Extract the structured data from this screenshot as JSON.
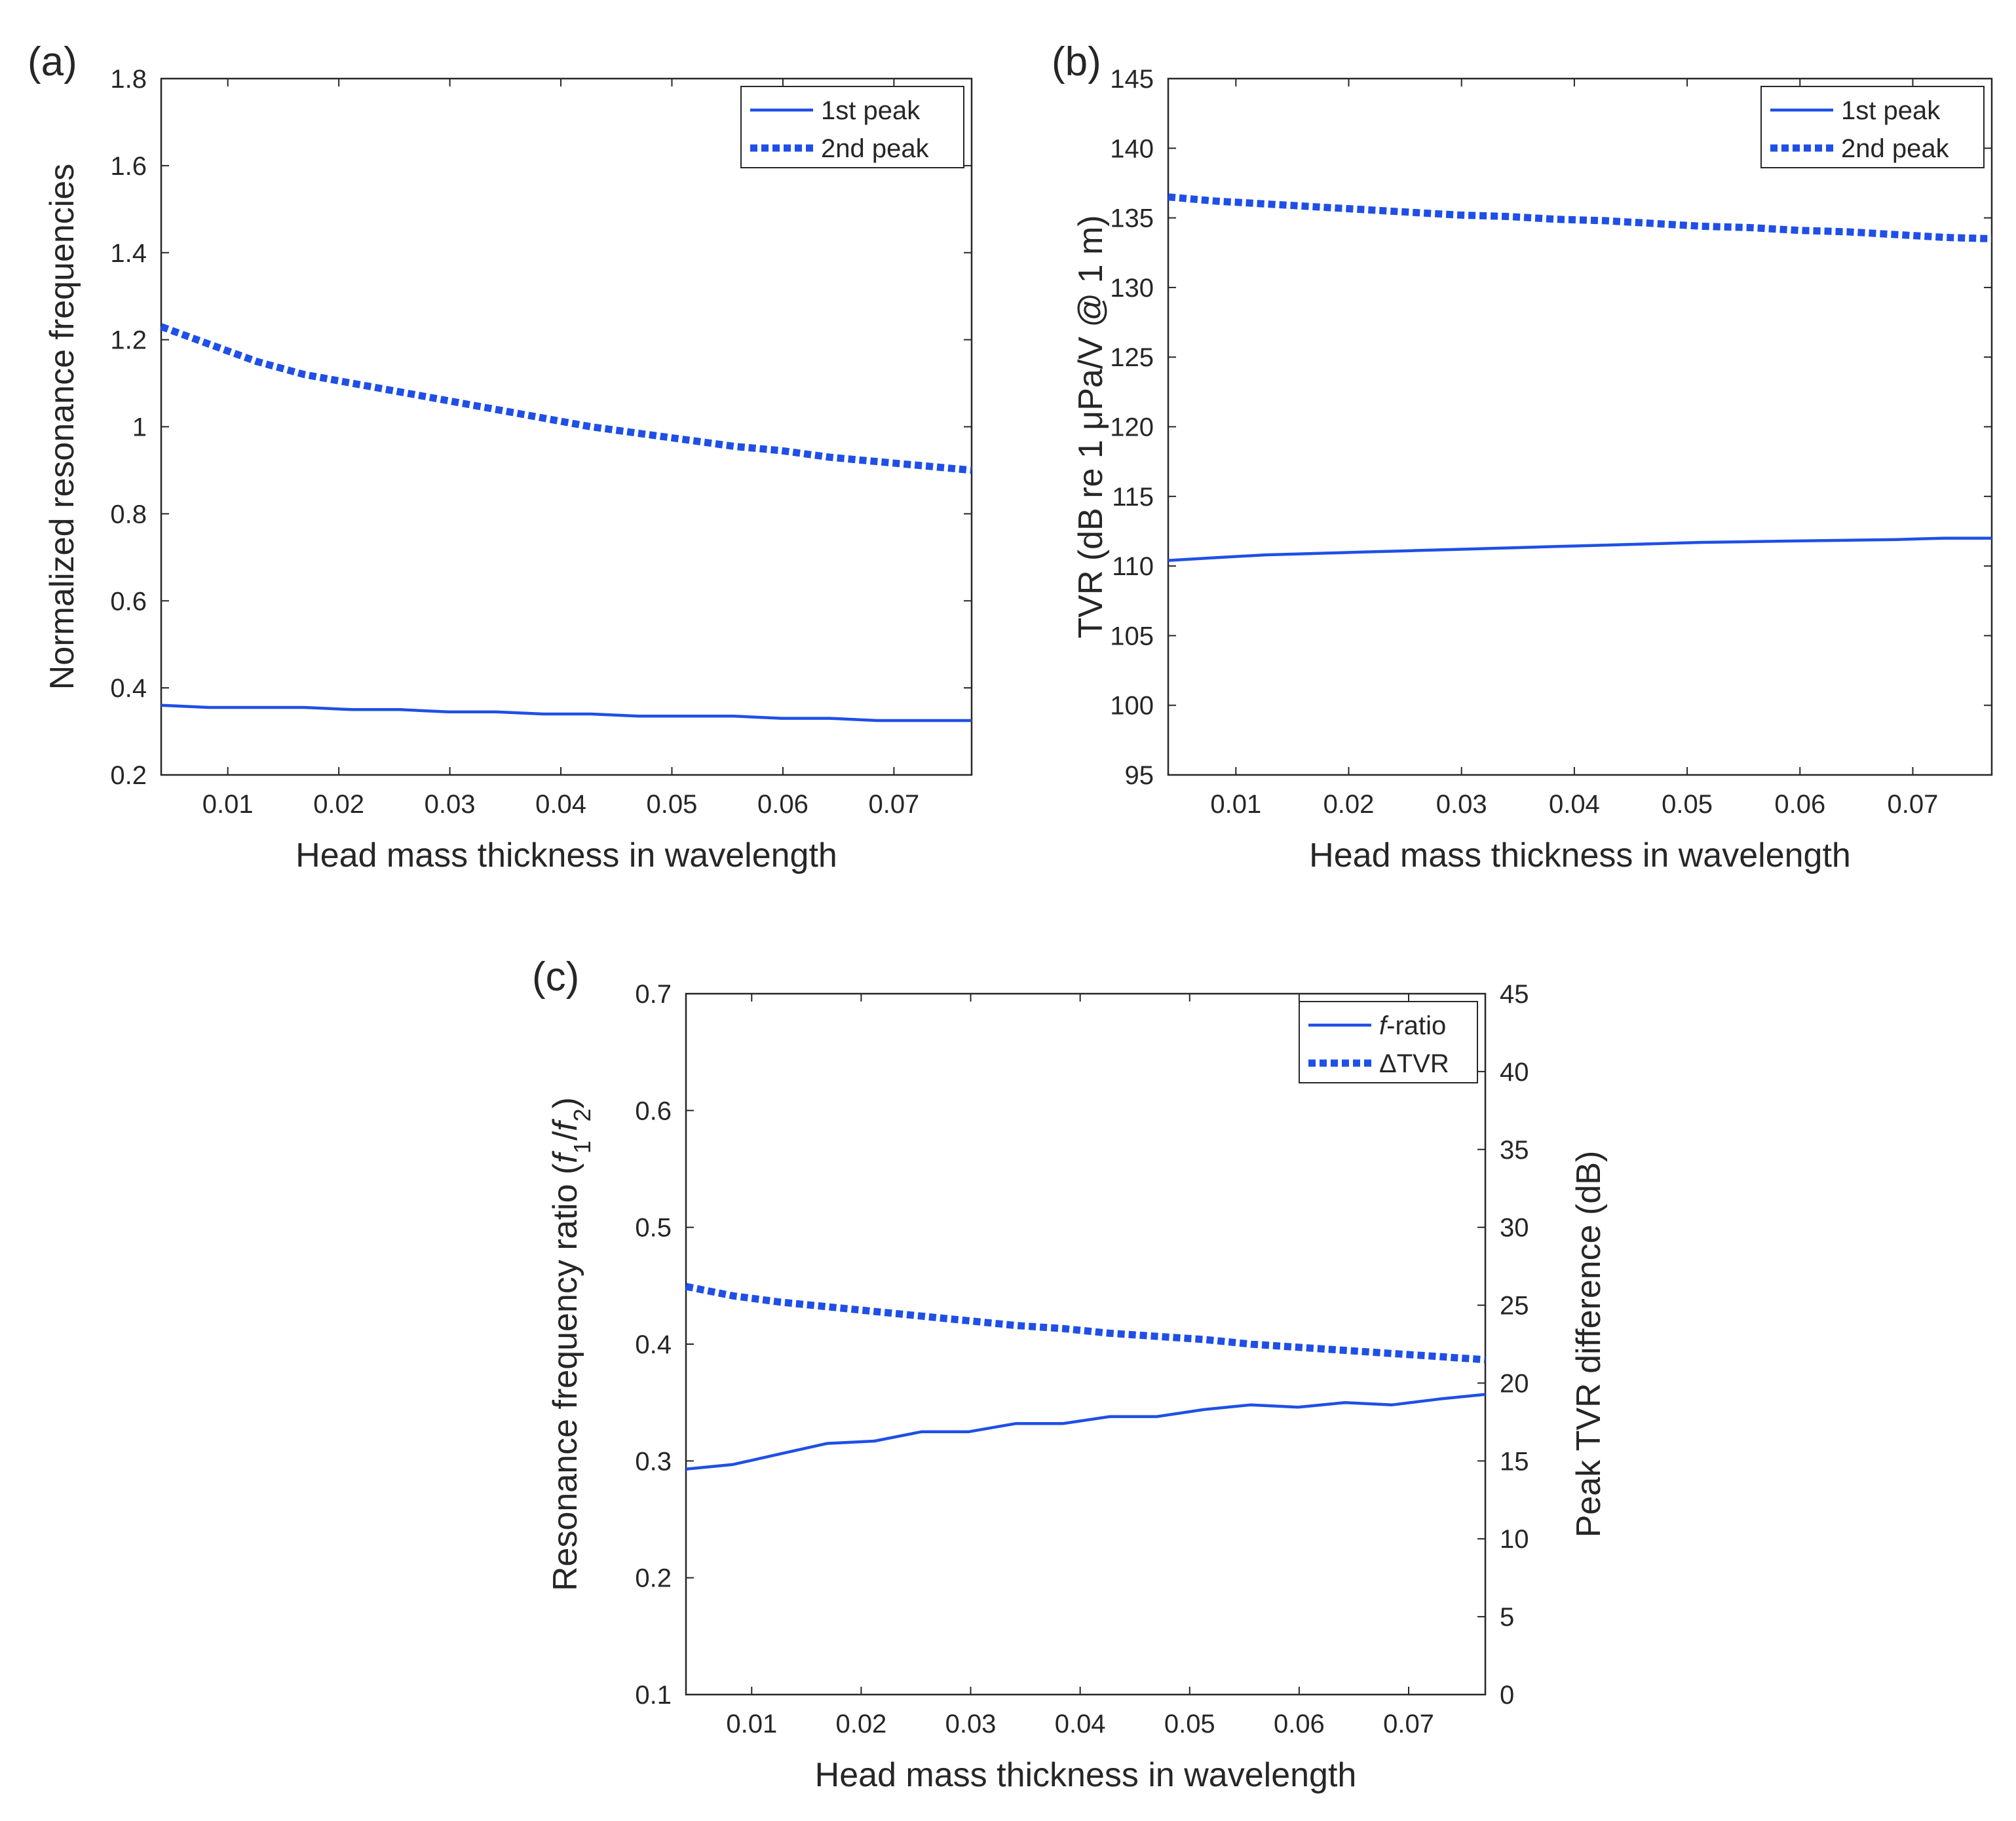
{
  "figure": {
    "panel_labels": [
      "(a)",
      "(b)",
      "(c)"
    ]
  },
  "colors": {
    "series": "#1f4fe6",
    "axis": "#262626",
    "background": "#ffffff"
  },
  "chart_data": [
    {
      "panel": "(a)",
      "type": "line",
      "title": "",
      "xlabel": "Head mass thickness in wavelength",
      "ylabel": "Normalized resonance frequencies",
      "xlim": [
        0.004,
        0.077
      ],
      "ylim": [
        0.2,
        1.8
      ],
      "xticks": [
        0.01,
        0.02,
        0.03,
        0.04,
        0.05,
        0.06,
        0.07
      ],
      "xtick_labels": [
        "0.01",
        "0.02",
        "0.03",
        "0.04",
        "0.05",
        "0.06",
        "0.07"
      ],
      "yticks": [
        0.2,
        0.4,
        0.6,
        0.8,
        1.0,
        1.2,
        1.4,
        1.6,
        1.8
      ],
      "ytick_labels": [
        "0.2",
        "0.4",
        "0.6",
        "0.8",
        "1",
        "1.2",
        "1.4",
        "1.6",
        "1.8"
      ],
      "legend_position": "top-right",
      "x": [
        0.004,
        0.0083,
        0.0126,
        0.0169,
        0.0212,
        0.0255,
        0.0298,
        0.0341,
        0.0384,
        0.0427,
        0.047,
        0.0513,
        0.0556,
        0.0599,
        0.0642,
        0.0685,
        0.0728,
        0.077
      ],
      "series": [
        {
          "name": "1st peak",
          "style": "solid",
          "values": [
            0.36,
            0.355,
            0.355,
            0.355,
            0.35,
            0.35,
            0.345,
            0.345,
            0.34,
            0.34,
            0.335,
            0.335,
            0.335,
            0.33,
            0.33,
            0.325,
            0.325,
            0.325
          ]
        },
        {
          "name": "2nd peak",
          "style": "dotted",
          "values": [
            1.23,
            1.19,
            1.15,
            1.12,
            1.1,
            1.08,
            1.06,
            1.04,
            1.02,
            1.0,
            0.985,
            0.97,
            0.955,
            0.945,
            0.93,
            0.92,
            0.91,
            0.9
          ]
        }
      ]
    },
    {
      "panel": "(b)",
      "type": "line",
      "title": "",
      "xlabel": "Head mass thickness in wavelength",
      "ylabel": "TVR (dB re 1 μPa/V @ 1 m)",
      "xlim": [
        0.004,
        0.077
      ],
      "ylim": [
        95,
        145
      ],
      "xticks": [
        0.01,
        0.02,
        0.03,
        0.04,
        0.05,
        0.06,
        0.07
      ],
      "xtick_labels": [
        "0.01",
        "0.02",
        "0.03",
        "0.04",
        "0.05",
        "0.06",
        "0.07"
      ],
      "yticks": [
        95,
        100,
        105,
        110,
        115,
        120,
        125,
        130,
        135,
        140,
        145
      ],
      "ytick_labels": [
        "95",
        "100",
        "105",
        "110",
        "115",
        "120",
        "125",
        "130",
        "135",
        "140",
        "145"
      ],
      "legend_position": "top-right",
      "x": [
        0.004,
        0.0083,
        0.0126,
        0.0169,
        0.0212,
        0.0255,
        0.0298,
        0.0341,
        0.0384,
        0.0427,
        0.047,
        0.0513,
        0.0556,
        0.0599,
        0.0642,
        0.0685,
        0.0728,
        0.077
      ],
      "series": [
        {
          "name": "1st peak",
          "style": "solid",
          "values": [
            110.4,
            110.6,
            110.8,
            110.9,
            111.0,
            111.1,
            111.2,
            111.3,
            111.4,
            111.5,
            111.6,
            111.7,
            111.75,
            111.8,
            111.85,
            111.9,
            112.0,
            112.0
          ]
        },
        {
          "name": "2nd peak",
          "style": "dotted",
          "values": [
            136.5,
            136.2,
            136.0,
            135.8,
            135.6,
            135.4,
            135.2,
            135.1,
            134.9,
            134.8,
            134.6,
            134.4,
            134.3,
            134.1,
            134.0,
            133.8,
            133.6,
            133.5
          ]
        }
      ]
    },
    {
      "panel": "(c)",
      "type": "line",
      "title": "",
      "xlabel": "Head mass thickness in wavelength",
      "ylabel": "Resonance frequency ratio (f1/f2)",
      "ylabel_parts": {
        "prefix": "Resonance frequency ratio (",
        "f1": "f",
        "sub1": "1",
        "slash": "/",
        "f2": "f",
        "sub2": "2",
        "suffix": ")"
      },
      "ylabel_right": "Peak TVR difference (dB)",
      "xlim": [
        0.004,
        0.077
      ],
      "ylim": [
        0.1,
        0.7
      ],
      "ylim_right": [
        0,
        45
      ],
      "xticks": [
        0.01,
        0.02,
        0.03,
        0.04,
        0.05,
        0.06,
        0.07
      ],
      "xtick_labels": [
        "0.01",
        "0.02",
        "0.03",
        "0.04",
        "0.05",
        "0.06",
        "0.07"
      ],
      "yticks": [
        0.1,
        0.2,
        0.3,
        0.4,
        0.5,
        0.6,
        0.7
      ],
      "ytick_labels": [
        "0.1",
        "0.2",
        "0.3",
        "0.4",
        "0.5",
        "0.6",
        "0.7"
      ],
      "yticks_right": [
        0,
        5,
        10,
        15,
        20,
        25,
        30,
        35,
        40,
        45
      ],
      "ytick_labels_right": [
        "0",
        "5",
        "10",
        "15",
        "20",
        "25",
        "30",
        "35",
        "40",
        "45"
      ],
      "legend_position": "top-right",
      "x": [
        0.004,
        0.0083,
        0.0126,
        0.0169,
        0.0212,
        0.0255,
        0.0298,
        0.0341,
        0.0384,
        0.0427,
        0.047,
        0.0513,
        0.0556,
        0.0599,
        0.0642,
        0.0685,
        0.0728,
        0.077
      ],
      "series": [
        {
          "name": "f-ratio",
          "legend_italic": "f",
          "legend_rest": "-ratio",
          "axis": "left",
          "style": "solid",
          "values": [
            0.293,
            0.297,
            0.306,
            0.315,
            0.317,
            0.325,
            0.325,
            0.332,
            0.332,
            0.338,
            0.338,
            0.344,
            0.348,
            0.346,
            0.35,
            0.348,
            0.353,
            0.357
          ]
        },
        {
          "name": "ΔTVR",
          "axis": "right",
          "style": "dotted",
          "values": [
            26.2,
            25.6,
            25.2,
            24.9,
            24.6,
            24.3,
            24.0,
            23.7,
            23.5,
            23.2,
            23.0,
            22.8,
            22.5,
            22.3,
            22.1,
            21.9,
            21.7,
            21.5
          ]
        }
      ]
    }
  ]
}
